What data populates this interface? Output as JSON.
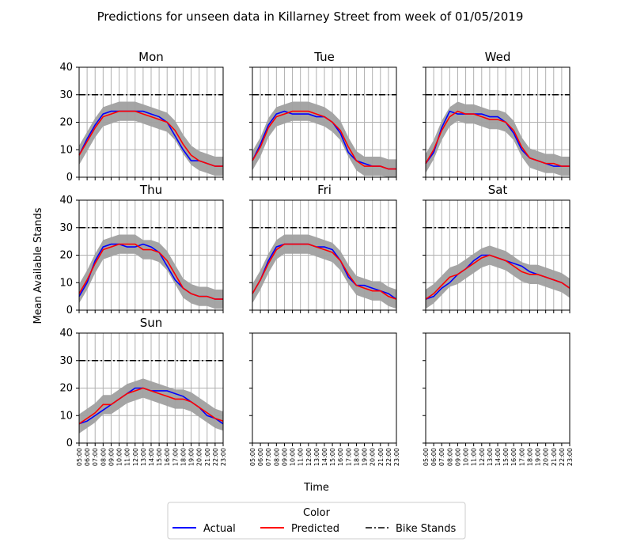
{
  "title": "Predictions for unseen data in Killarney Street from week of 01/05/2019",
  "xlabel": "Time",
  "ylabel": "Mean Available Stands",
  "colors": {
    "actual": "#0000ff",
    "predicted": "#ff0000",
    "band": "#a0a0a0",
    "stands": "#000000",
    "grid": "#b0b0b0"
  },
  "legend": {
    "title": "Color",
    "placement": "bottom-center",
    "items": [
      {
        "label": "Actual",
        "color": "#0000ff",
        "style": "solid"
      },
      {
        "label": "Predicted",
        "color": "#ff0000",
        "style": "solid"
      },
      {
        "label": "Bike Stands",
        "color": "#000000",
        "style": "dashdot"
      }
    ]
  },
  "chart_data": [
    {
      "type": "line",
      "title": "Mon",
      "ylim": [
        0,
        40
      ],
      "yticks": [
        0,
        10,
        20,
        30,
        40
      ],
      "bike_stands": 30,
      "actual": [
        8,
        14,
        19,
        23,
        24,
        24,
        24,
        24,
        24,
        23,
        22,
        20,
        15,
        10,
        6,
        6,
        5,
        4,
        4
      ],
      "predicted": [
        8,
        13,
        18,
        22,
        23,
        24,
        24,
        24,
        23,
        22,
        21,
        20,
        17,
        12,
        8,
        6,
        5,
        4,
        4
      ]
    },
    {
      "type": "line",
      "title": "Tue",
      "ylim": [
        0,
        40
      ],
      "yticks": [
        0,
        10,
        20,
        30,
        40
      ],
      "bike_stands": 30,
      "actual": [
        6,
        12,
        19,
        23,
        24,
        23,
        23,
        23,
        22,
        22,
        20,
        16,
        9,
        6,
        5,
        4,
        4,
        3,
        3
      ],
      "predicted": [
        6,
        11,
        18,
        22,
        23,
        24,
        24,
        24,
        23,
        22,
        20,
        17,
        11,
        6,
        4,
        4,
        4,
        3,
        3
      ]
    },
    {
      "type": "line",
      "title": "Wed",
      "ylim": [
        0,
        40
      ],
      "yticks": [
        0,
        10,
        20,
        30,
        40
      ],
      "bike_stands": 30,
      "actual": [
        5,
        9,
        18,
        24,
        23,
        23,
        23,
        23,
        22,
        22,
        20,
        16,
        10,
        7,
        6,
        5,
        4,
        4,
        4
      ],
      "predicted": [
        5,
        10,
        17,
        22,
        24,
        23,
        23,
        22,
        21,
        21,
        20,
        17,
        11,
        7,
        6,
        5,
        5,
        4,
        4
      ]
    },
    {
      "type": "line",
      "title": "Thu",
      "ylim": [
        0,
        40
      ],
      "yticks": [
        0,
        10,
        20,
        30,
        40
      ],
      "bike_stands": 30,
      "actual": [
        5,
        10,
        18,
        23,
        24,
        24,
        23,
        23,
        24,
        23,
        21,
        16,
        11,
        8,
        6,
        5,
        5,
        4,
        4
      ],
      "predicted": [
        6,
        11,
        17,
        22,
        23,
        24,
        24,
        24,
        22,
        22,
        21,
        18,
        13,
        8,
        6,
        5,
        5,
        4,
        4
      ]
    },
    {
      "type": "line",
      "title": "Fri",
      "ylim": [
        0,
        40
      ],
      "yticks": [
        0,
        10,
        20,
        30,
        40
      ],
      "bike_stands": 30,
      "actual": [
        6,
        11,
        18,
        23,
        24,
        24,
        24,
        24,
        23,
        23,
        22,
        18,
        12,
        9,
        9,
        8,
        7,
        6,
        4
      ],
      "predicted": [
        6,
        11,
        17,
        22,
        24,
        24,
        24,
        24,
        23,
        22,
        21,
        18,
        13,
        9,
        8,
        7,
        7,
        5,
        4
      ]
    },
    {
      "type": "line",
      "title": "Sat",
      "ylim": [
        0,
        40
      ],
      "yticks": [
        0,
        10,
        20,
        30,
        40
      ],
      "bike_stands": 30,
      "actual": [
        4,
        5,
        8,
        10,
        13,
        15,
        18,
        20,
        20,
        19,
        18,
        17,
        16,
        14,
        13,
        12,
        11,
        10,
        8
      ],
      "predicted": [
        4,
        6,
        9,
        12,
        13,
        15,
        17,
        19,
        20,
        19,
        18,
        16,
        14,
        13,
        13,
        12,
        11,
        10,
        8
      ]
    },
    {
      "type": "line",
      "title": "Sun",
      "ylim": [
        0,
        40
      ],
      "yticks": [
        0,
        10,
        20,
        30,
        40
      ],
      "bike_stands": 30,
      "actual": [
        7,
        8,
        10,
        12,
        14,
        16,
        18,
        20,
        20,
        19,
        19,
        19,
        18,
        17,
        15,
        13,
        10,
        9,
        7
      ],
      "predicted": [
        7,
        9,
        11,
        14,
        14,
        16,
        18,
        19,
        20,
        19,
        18,
        17,
        16,
        16,
        15,
        13,
        11,
        9,
        8
      ]
    }
  ],
  "empty_panels": 2,
  "x_ticks": [
    "05:00",
    "06:00",
    "07:00",
    "08:00",
    "09:00",
    "10:00",
    "11:00",
    "12:00",
    "13:00",
    "14:00",
    "15:00",
    "16:00",
    "17:00",
    "18:00",
    "19:00",
    "20:00",
    "21:00",
    "22:00",
    "23:00"
  ]
}
